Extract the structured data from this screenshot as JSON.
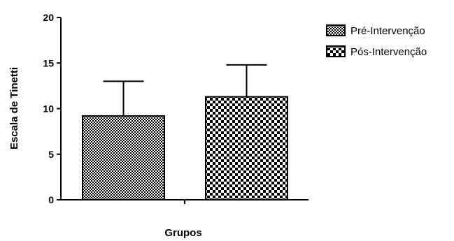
{
  "chart_data": {
    "type": "bar",
    "xlabel": "Grupos",
    "ylabel": "Escala de Tinetti",
    "ylim": [
      0,
      20
    ],
    "yticks": [
      "0",
      "5",
      "10",
      "15",
      "20"
    ],
    "grid": false,
    "legend_position": "top-right",
    "series": [
      {
        "name": "Pré-Intervenção",
        "value": 9.2,
        "error": 3.8,
        "pattern": "fine-checker"
      },
      {
        "name": "Pós-Intervenção",
        "value": 11.3,
        "error": 3.5,
        "pattern": "coarse-checker"
      }
    ]
  }
}
